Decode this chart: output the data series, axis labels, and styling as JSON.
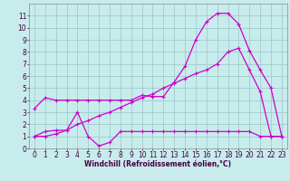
{
  "xlabel": "Windchill (Refroidissement éolien,°C)",
  "bg_color": "#c8ecec",
  "grid_color": "#a0cccc",
  "line_color": "#cc00cc",
  "xlim": [
    -0.5,
    23.5
  ],
  "ylim": [
    0,
    12
  ],
  "xticks": [
    0,
    1,
    2,
    3,
    4,
    5,
    6,
    7,
    8,
    9,
    10,
    11,
    12,
    13,
    14,
    15,
    16,
    17,
    18,
    19,
    20,
    21,
    22,
    23
  ],
  "yticks": [
    0,
    1,
    2,
    3,
    4,
    5,
    6,
    7,
    8,
    9,
    10,
    11
  ],
  "line1_x": [
    0,
    1,
    2,
    3,
    4,
    5,
    6,
    7,
    8,
    9,
    10,
    11,
    12,
    13,
    14,
    15,
    16,
    17,
    18,
    19,
    20,
    21,
    22,
    23
  ],
  "line1_y": [
    3.3,
    4.2,
    4.0,
    4.0,
    4.0,
    4.0,
    4.0,
    4.0,
    4.0,
    4.0,
    4.4,
    4.3,
    4.3,
    5.5,
    6.8,
    9.0,
    10.5,
    11.2,
    11.2,
    10.3,
    8.1,
    6.5,
    5.0,
    1.0
  ],
  "line2_x": [
    0,
    1,
    2,
    3,
    4,
    5,
    6,
    7,
    8,
    9,
    10,
    11,
    12,
    13,
    14,
    15,
    16,
    17,
    18,
    19,
    20,
    21,
    22,
    23
  ],
  "line2_y": [
    1.0,
    1.4,
    1.5,
    1.5,
    3.0,
    1.0,
    0.2,
    0.5,
    1.4,
    1.4,
    1.4,
    1.4,
    1.4,
    1.4,
    1.4,
    1.4,
    1.4,
    1.4,
    1.4,
    1.4,
    1.4,
    1.0,
    1.0,
    1.0
  ],
  "line3_x": [
    0,
    1,
    2,
    3,
    4,
    5,
    6,
    7,
    8,
    9,
    10,
    11,
    12,
    13,
    14,
    15,
    16,
    17,
    18,
    19,
    20,
    21,
    22,
    23
  ],
  "line3_y": [
    1.0,
    1.0,
    1.2,
    1.5,
    2.0,
    2.3,
    2.7,
    3.0,
    3.4,
    3.8,
    4.2,
    4.5,
    5.0,
    5.4,
    5.8,
    6.2,
    6.5,
    7.0,
    8.0,
    8.3,
    6.5,
    4.7,
    1.0,
    1.0
  ],
  "tick_fontsize": 5.5,
  "xlabel_fontsize": 5.5
}
